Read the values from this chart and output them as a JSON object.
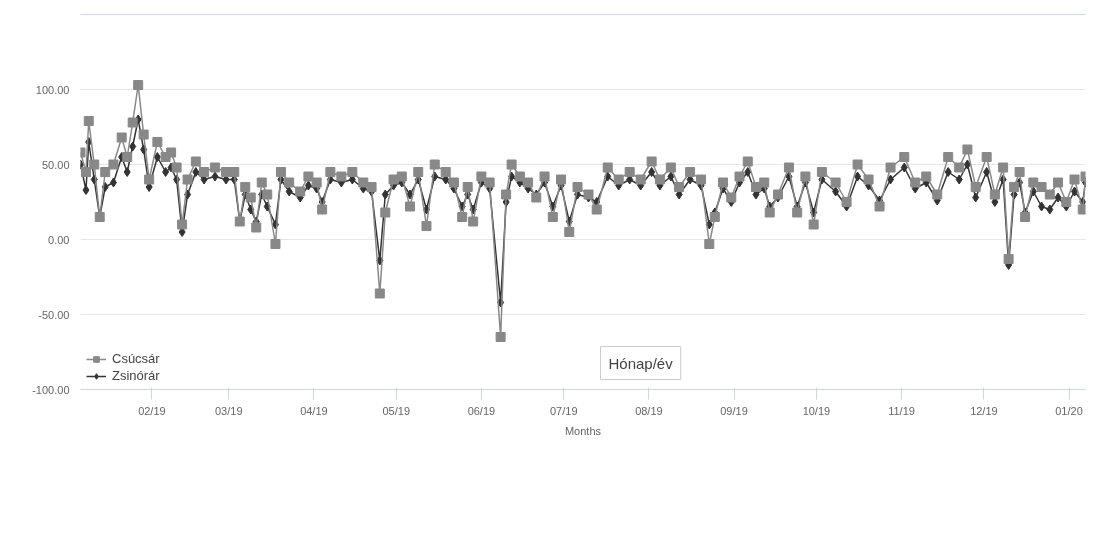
{
  "chart_data": {
    "type": "line",
    "xlabel": "Months",
    "annotations": [
      "Hónap/év"
    ],
    "x": [
      "2019-01-06",
      "2019-01-08",
      "2019-01-09",
      "2019-01-11",
      "2019-01-13",
      "2019-01-15",
      "2019-01-18",
      "2019-01-21",
      "2019-01-23",
      "2019-01-25",
      "2019-01-27",
      "2019-01-29",
      "2019-01-31",
      "2019-02-03",
      "2019-02-06",
      "2019-02-08",
      "2019-02-10",
      "2019-02-12",
      "2019-02-14",
      "2019-02-17",
      "2019-02-20",
      "2019-02-24",
      "2019-02-28",
      "2019-03-03",
      "2019-03-05",
      "2019-03-07",
      "2019-03-09",
      "2019-03-11",
      "2019-03-13",
      "2019-03-15",
      "2019-03-18",
      "2019-03-20",
      "2019-03-23",
      "2019-03-27",
      "2019-03-30",
      "2019-04-02",
      "2019-04-04",
      "2019-04-07",
      "2019-04-11",
      "2019-04-15",
      "2019-04-19",
      "2019-04-22",
      "2019-04-25",
      "2019-04-27",
      "2019-04-30",
      "2019-05-03",
      "2019-05-06",
      "2019-05-09",
      "2019-05-12",
      "2019-05-15",
      "2019-05-19",
      "2019-05-22",
      "2019-05-25",
      "2019-05-27",
      "2019-05-29",
      "2019-06-01",
      "2019-06-04",
      "2019-06-08",
      "2019-06-10",
      "2019-06-12",
      "2019-06-15",
      "2019-06-18",
      "2019-06-21",
      "2019-06-24",
      "2019-06-27",
      "2019-06-30",
      "2019-07-03",
      "2019-07-06",
      "2019-07-10",
      "2019-07-13",
      "2019-07-17",
      "2019-07-21",
      "2019-07-25",
      "2019-07-29",
      "2019-08-02",
      "2019-08-05",
      "2019-08-09",
      "2019-08-12",
      "2019-08-16",
      "2019-08-20",
      "2019-08-23",
      "2019-08-25",
      "2019-08-28",
      "2019-08-31",
      "2019-09-03",
      "2019-09-06",
      "2019-09-09",
      "2019-09-12",
      "2019-09-14",
      "2019-09-17",
      "2019-09-21",
      "2019-09-24",
      "2019-09-27",
      "2019-09-30",
      "2019-10-03",
      "2019-10-08",
      "2019-10-12",
      "2019-10-16",
      "2019-10-20",
      "2019-10-24",
      "2019-10-28",
      "2019-11-02",
      "2019-11-06",
      "2019-11-10",
      "2019-11-14",
      "2019-11-18",
      "2019-11-22",
      "2019-11-25",
      "2019-11-28",
      "2019-12-02",
      "2019-12-05",
      "2019-12-08",
      "2019-12-10",
      "2019-12-12",
      "2019-12-14",
      "2019-12-16",
      "2019-12-19",
      "2019-12-22",
      "2019-12-25",
      "2019-12-28",
      "2019-12-31",
      "2020-01-03",
      "2020-01-06",
      "2020-01-07"
    ],
    "series": [
      {
        "name": "Zsinórár",
        "color": "#333333",
        "marker": "diamond",
        "values": [
          50,
          33,
          65,
          40,
          15,
          35,
          38,
          55,
          45,
          62,
          80,
          60,
          35,
          55,
          45,
          48,
          40,
          5,
          30,
          45,
          40,
          42,
          40,
          40,
          12,
          30,
          20,
          12,
          30,
          22,
          10,
          40,
          32,
          28,
          36,
          34,
          25,
          40,
          38,
          40,
          34,
          32,
          -14,
          30,
          36,
          38,
          30,
          40,
          20,
          42,
          40,
          34,
          22,
          30,
          20,
          38,
          34,
          -42,
          25,
          42,
          38,
          34,
          30,
          38,
          22,
          36,
          12,
          30,
          28,
          25,
          42,
          36,
          40,
          36,
          45,
          36,
          42,
          30,
          40,
          36,
          10,
          18,
          34,
          25,
          38,
          45,
          30,
          34,
          22,
          28,
          42,
          22,
          38,
          18,
          40,
          32,
          22,
          42,
          36,
          26,
          40,
          48,
          34,
          38,
          26,
          45,
          40,
          50,
          28,
          45,
          25,
          40,
          -17,
          30,
          38,
          18,
          32,
          22,
          20,
          28,
          22,
          32,
          25,
          38
        ]
      },
      {
        "name": "Csúcsár",
        "color": "#888888",
        "marker": "square",
        "values": [
          58,
          45,
          79,
          50,
          15,
          45,
          50,
          68,
          55,
          78,
          103,
          70,
          40,
          65,
          55,
          58,
          48,
          10,
          40,
          52,
          45,
          48,
          45,
          45,
          12,
          35,
          28,
          8,
          38,
          30,
          -3,
          45,
          38,
          32,
          42,
          38,
          20,
          45,
          42,
          45,
          38,
          35,
          -36,
          18,
          40,
          42,
          22,
          45,
          9,
          50,
          45,
          38,
          15,
          35,
          12,
          42,
          38,
          -65,
          30,
          50,
          42,
          38,
          28,
          42,
          15,
          40,
          5,
          35,
          30,
          20,
          48,
          40,
          45,
          40,
          52,
          40,
          48,
          35,
          45,
          40,
          -3,
          15,
          38,
          28,
          42,
          52,
          35,
          38,
          18,
          30,
          48,
          18,
          42,
          10,
          45,
          38,
          25,
          50,
          40,
          22,
          48,
          55,
          38,
          42,
          30,
          55,
          48,
          60,
          35,
          55,
          30,
          48,
          -13,
          35,
          45,
          15,
          38,
          35,
          30,
          38,
          25,
          40,
          20,
          42
        ]
      }
    ],
    "xlim": [
      "2019-01-06",
      "2020-01-07"
    ],
    "xticks": [
      {
        "value": "2019-02-01",
        "label": "02/19"
      },
      {
        "value": "2019-03-01",
        "label": "03/19"
      },
      {
        "value": "2019-04-01",
        "label": "04/19"
      },
      {
        "value": "2019-05-01",
        "label": "05/19"
      },
      {
        "value": "2019-06-01",
        "label": "06/19"
      },
      {
        "value": "2019-07-01",
        "label": "07/19"
      },
      {
        "value": "2019-08-01",
        "label": "08/19"
      },
      {
        "value": "2019-09-01",
        "label": "09/19"
      },
      {
        "value": "2019-10-01",
        "label": "10/19"
      },
      {
        "value": "2019-11-01",
        "label": "11/19"
      },
      {
        "value": "2019-12-01",
        "label": "12/19"
      },
      {
        "value": "2020-01-01",
        "label": "01/20"
      }
    ],
    "ylim": [
      -100,
      150
    ],
    "yticks": [
      {
        "value": -100,
        "label": "-100.00"
      },
      {
        "value": -50,
        "label": "-50.00"
      },
      {
        "value": 0,
        "label": "0.00"
      },
      {
        "value": 50,
        "label": "50.00"
      },
      {
        "value": 100,
        "label": "100.00"
      }
    ],
    "grid": "y",
    "legend": "bottom left",
    "line_style": "solid"
  }
}
